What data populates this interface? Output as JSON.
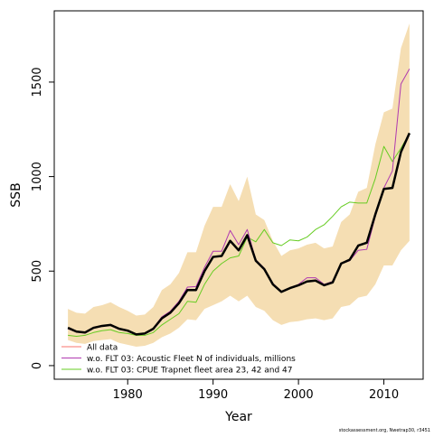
{
  "chart_data": {
    "type": "line",
    "xlabel": "Year",
    "ylabel": "SSB",
    "footer": "stockassessment.org, Nwetrap30, r3451",
    "x": [
      1973,
      1974,
      1975,
      1976,
      1977,
      1978,
      1979,
      1980,
      1981,
      1982,
      1983,
      1984,
      1985,
      1986,
      1987,
      1988,
      1989,
      1990,
      1991,
      1992,
      1993,
      1994,
      1995,
      1996,
      1997,
      1998,
      1999,
      2000,
      2001,
      2002,
      2003,
      2004,
      2005,
      2006,
      2007,
      2008,
      2009,
      2010,
      2011,
      2012,
      2013
    ],
    "band": {
      "color": "#f5deb3",
      "upper": [
        300,
        280,
        275,
        310,
        320,
        335,
        310,
        290,
        265,
        270,
        310,
        400,
        430,
        490,
        600,
        600,
        740,
        840,
        840,
        960,
        870,
        1000,
        800,
        770,
        660,
        580,
        610,
        620,
        640,
        650,
        620,
        630,
        760,
        800,
        920,
        940,
        1170,
        1340,
        1360,
        1680,
        1810
      ],
      "lower": [
        135,
        120,
        115,
        130,
        135,
        140,
        120,
        110,
        100,
        105,
        120,
        150,
        170,
        200,
        245,
        240,
        300,
        320,
        340,
        370,
        340,
        370,
        310,
        290,
        240,
        215,
        230,
        235,
        245,
        250,
        240,
        250,
        310,
        320,
        360,
        370,
        430,
        530,
        530,
        610,
        660
      ]
    },
    "series": [
      {
        "name": "All data",
        "color": "#000000",
        "legend_color": "#f8766d",
        "width": 2.5,
        "values": [
          200,
          180,
          175,
          200,
          210,
          215,
          195,
          185,
          165,
          170,
          195,
          250,
          280,
          330,
          400,
          400,
          500,
          575,
          580,
          660,
          610,
          690,
          555,
          510,
          430,
          390,
          410,
          425,
          445,
          450,
          425,
          440,
          540,
          560,
          635,
          650,
          800,
          935,
          940,
          1130,
          1230
        ]
      },
      {
        "name": "w.o. FLT 03: Acoustic Fleet   N of individuals, millions",
        "color": "#b03ab0",
        "width": 1,
        "values": [
          195,
          178,
          172,
          198,
          208,
          218,
          196,
          186,
          166,
          172,
          198,
          258,
          288,
          340,
          415,
          418,
          520,
          605,
          605,
          715,
          640,
          720,
          560,
          515,
          435,
          392,
          412,
          430,
          465,
          465,
          430,
          445,
          540,
          555,
          610,
          615,
          790,
          940,
          1030,
          1490,
          1570
        ]
      },
      {
        "name": "w.o. FLT 03: CPUE Trapnet fleet area 23, 42 and 47",
        "color": "#66cc22",
        "width": 1,
        "values": [
          160,
          155,
          160,
          175,
          185,
          190,
          175,
          170,
          160,
          160,
          175,
          215,
          245,
          275,
          340,
          335,
          430,
          500,
          540,
          570,
          580,
          680,
          655,
          720,
          650,
          635,
          665,
          660,
          680,
          720,
          745,
          790,
          840,
          865,
          860,
          860,
          990,
          1160,
          1080,
          1150,
          1230
        ]
      }
    ],
    "xlim": [
      1971.4,
      2014.6
    ],
    "ylim": [
      -72,
      1877
    ],
    "xticks": [
      1980,
      1990,
      2000,
      2010
    ],
    "yticks": [
      0,
      500,
      1000,
      1500
    ],
    "legend": "bottomleft"
  }
}
